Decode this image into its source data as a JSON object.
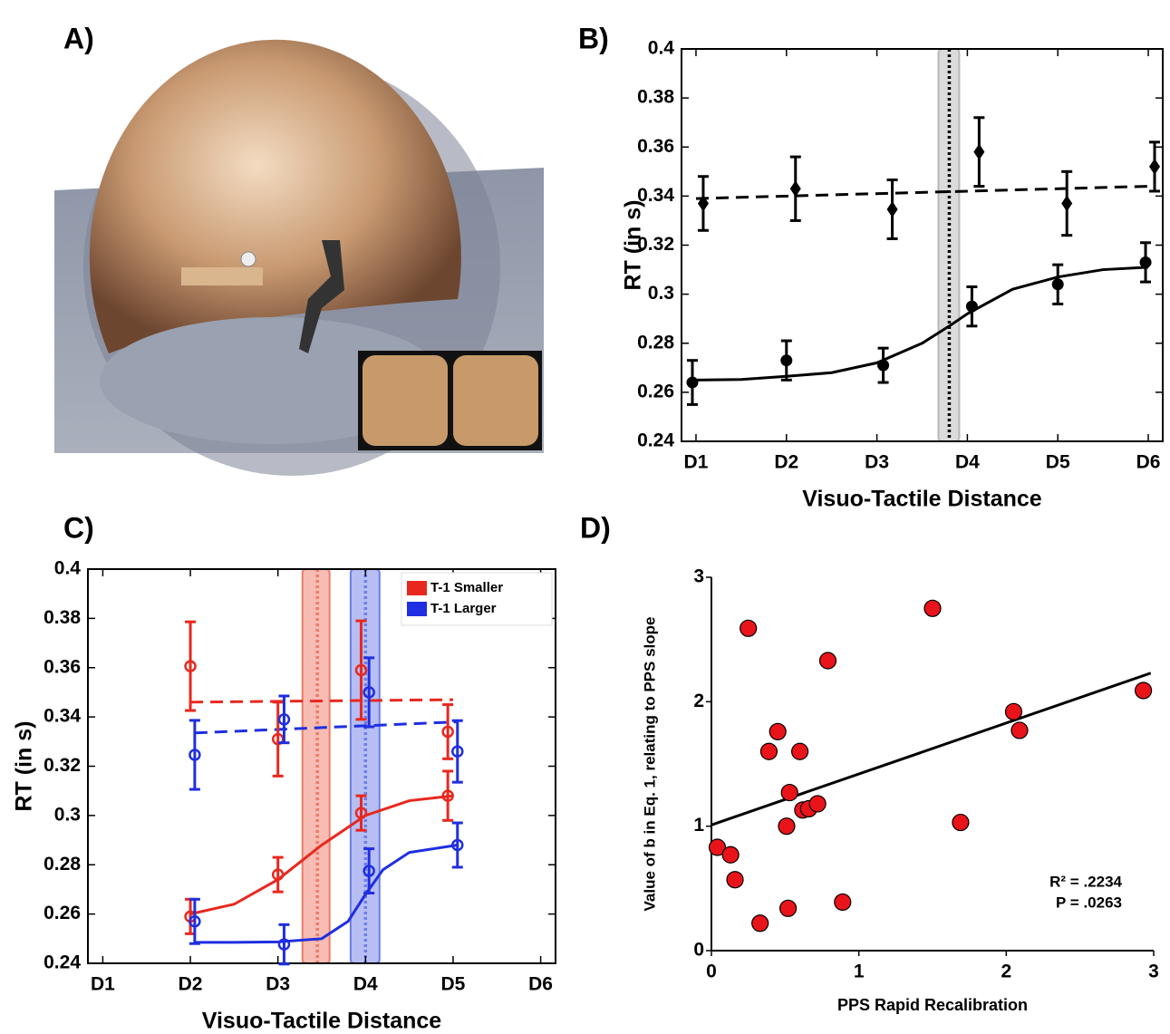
{
  "panel_a": {
    "label": "A)"
  },
  "chart_data": [
    {
      "type": "errorbar",
      "label": "B)",
      "xlabel": "Visuo-Tactile Distance",
      "ylabel": "RT (in s)",
      "xlim": [
        0.84,
        6.16
      ],
      "ylim": [
        0.24,
        0.4
      ],
      "xticks": [
        {
          "value": 1,
          "label": "D1"
        },
        {
          "value": 2,
          "label": "D2"
        },
        {
          "value": 3,
          "label": "D3"
        },
        {
          "value": 4,
          "label": "D4"
        },
        {
          "value": 5,
          "label": "D5"
        },
        {
          "value": 6,
          "label": "D6"
        }
      ],
      "yticks": [
        0.24,
        0.26,
        0.28,
        0.3,
        0.32,
        0.34,
        0.36,
        0.38,
        0.4
      ],
      "bands": [
        {
          "color": "#b8b8b8",
          "xlim": [
            3.68,
            3.91
          ],
          "x": 3.8
        }
      ],
      "fits": [
        {
          "color": "#000000",
          "dash": true,
          "x": [
            1,
            6
          ],
          "values": [
            0.339,
            0.344
          ]
        },
        {
          "color": "#000000",
          "dash": false,
          "x": [
            1,
            1.5,
            2,
            2.5,
            3,
            3.5,
            3.8,
            4,
            4.5,
            5,
            5.5,
            6
          ],
          "values": [
            0.265,
            0.2652,
            0.2665,
            0.268,
            0.272,
            0.28,
            0.287,
            0.292,
            0.302,
            0.307,
            0.31,
            0.311
          ]
        }
      ],
      "series": [
        {
          "color": "#000000",
          "marker": "diamond",
          "x": [
            1.08,
            2.1,
            3.17,
            4.13,
            5.1,
            6.07
          ],
          "values": [
            0.337,
            0.343,
            0.3346,
            0.358,
            0.337,
            0.352
          ],
          "errors": [
            0.011,
            0.013,
            0.012,
            0.014,
            0.013,
            0.01
          ]
        },
        {
          "color": "#000000",
          "marker": "circle",
          "x": [
            0.96,
            2.0,
            3.07,
            4.05,
            5.0,
            5.97
          ],
          "values": [
            0.264,
            0.273,
            0.271,
            0.295,
            0.304,
            0.313
          ],
          "errors": [
            0.009,
            0.008,
            0.007,
            0.008,
            0.008,
            0.008
          ]
        }
      ]
    },
    {
      "type": "errorbar",
      "label": "C)",
      "xlabel": "Visuo-Tactile Distance",
      "ylabel": "RT (in s)",
      "xlim": [
        0.83,
        6.17
      ],
      "ylim": [
        0.24,
        0.4
      ],
      "xticks": [
        {
          "value": 1,
          "label": "D1"
        },
        {
          "value": 2,
          "label": "D2"
        },
        {
          "value": 3,
          "label": "D3"
        },
        {
          "value": 4,
          "label": "D4"
        },
        {
          "value": 5,
          "label": "D5"
        },
        {
          "value": 6,
          "label": "D6"
        }
      ],
      "yticks": [
        0.24,
        0.26,
        0.28,
        0.3,
        0.32,
        0.34,
        0.36,
        0.38,
        0.4
      ],
      "legend": "upper right",
      "bands": [
        {
          "color": "#f07a68",
          "xlim": [
            3.28,
            3.59
          ],
          "x": 3.45
        },
        {
          "color": "#6e7ee8",
          "xlim": [
            3.83,
            4.16
          ],
          "x": 4.0
        }
      ],
      "fits": [
        {
          "color": "#e8281e",
          "dash": true,
          "x": [
            2,
            5
          ],
          "values": [
            0.346,
            0.347
          ]
        },
        {
          "color": "#1f2ee0",
          "dash": true,
          "x": [
            2.05,
            5.05
          ],
          "values": [
            0.3335,
            0.338
          ]
        },
        {
          "color": "#e8281e",
          "dash": false,
          "x": [
            2,
            2.5,
            3,
            3.5,
            4,
            4.5,
            5
          ],
          "values": [
            0.26,
            0.264,
            0.274,
            0.288,
            0.3,
            0.306,
            0.308
          ]
        },
        {
          "color": "#1f2ee0",
          "dash": false,
          "x": [
            2.05,
            2.5,
            3,
            3.5,
            3.8,
            4,
            4.2,
            4.5,
            5.05
          ],
          "values": [
            0.2485,
            0.2485,
            0.2487,
            0.25,
            0.257,
            0.268,
            0.278,
            0.285,
            0.288
          ]
        }
      ],
      "series": [
        {
          "name": "T-1 Smaller",
          "color": "#e8281e",
          "marker": "open-circle",
          "x": [
            2.0,
            3.0,
            3.95,
            4.94
          ],
          "values": [
            0.3606,
            0.331,
            0.359,
            0.334
          ],
          "errors": [
            0.018,
            0.015,
            0.02,
            0.011
          ]
        },
        {
          "color": "#e8281e",
          "marker": "open-circle",
          "x": [
            2.0,
            3.0,
            3.95,
            4.94
          ],
          "values": [
            0.259,
            0.276,
            0.301,
            0.308
          ],
          "errors": [
            0.007,
            0.007,
            0.007,
            0.01
          ]
        },
        {
          "name": "T-1 Larger",
          "color": "#1f2ee0",
          "marker": "open-circle",
          "x": [
            2.05,
            3.07,
            4.04,
            5.05
          ],
          "values": [
            0.3246,
            0.339,
            0.35,
            0.326
          ],
          "errors": [
            0.014,
            0.0095,
            0.014,
            0.0125
          ]
        },
        {
          "color": "#1f2ee0",
          "marker": "open-circle",
          "x": [
            2.05,
            3.07,
            4.04,
            5.05
          ],
          "values": [
            0.257,
            0.2477,
            0.2775,
            0.288
          ],
          "errors": [
            0.009,
            0.008,
            0.009,
            0.009
          ]
        }
      ]
    },
    {
      "type": "scatter",
      "label": "D)",
      "xlabel": "PPS Rapid Recalibration",
      "ylabel": "Value of b in Eq. 1, relating to PPS slope",
      "xlim": [
        0,
        3
      ],
      "ylim": [
        0,
        3
      ],
      "xticks": [
        0,
        1,
        2,
        3
      ],
      "yticks": [
        0,
        1,
        2,
        3
      ],
      "annotations": [
        "R² = .2234",
        "P = .0263"
      ],
      "fits": [
        {
          "color": "#000000",
          "dash": false,
          "x": [
            0,
            2.98
          ],
          "values": [
            1.01,
            2.23
          ]
        }
      ],
      "series": [
        {
          "color": "#e8141a",
          "marker": "dot",
          "x": [
            0.04,
            0.13,
            0.16,
            0.25,
            0.33,
            0.39,
            0.45,
            0.52,
            0.51,
            0.53,
            0.6,
            0.62,
            0.66,
            0.72,
            0.79,
            0.89,
            1.5,
            1.69,
            2.05,
            2.09,
            2.93
          ],
          "values": [
            0.83,
            0.77,
            0.57,
            2.59,
            0.22,
            1.6,
            1.76,
            0.34,
            1.0,
            1.27,
            1.6,
            1.13,
            1.14,
            1.18,
            2.33,
            0.39,
            2.75,
            1.03,
            1.92,
            1.77,
            2.09
          ]
        }
      ]
    }
  ]
}
